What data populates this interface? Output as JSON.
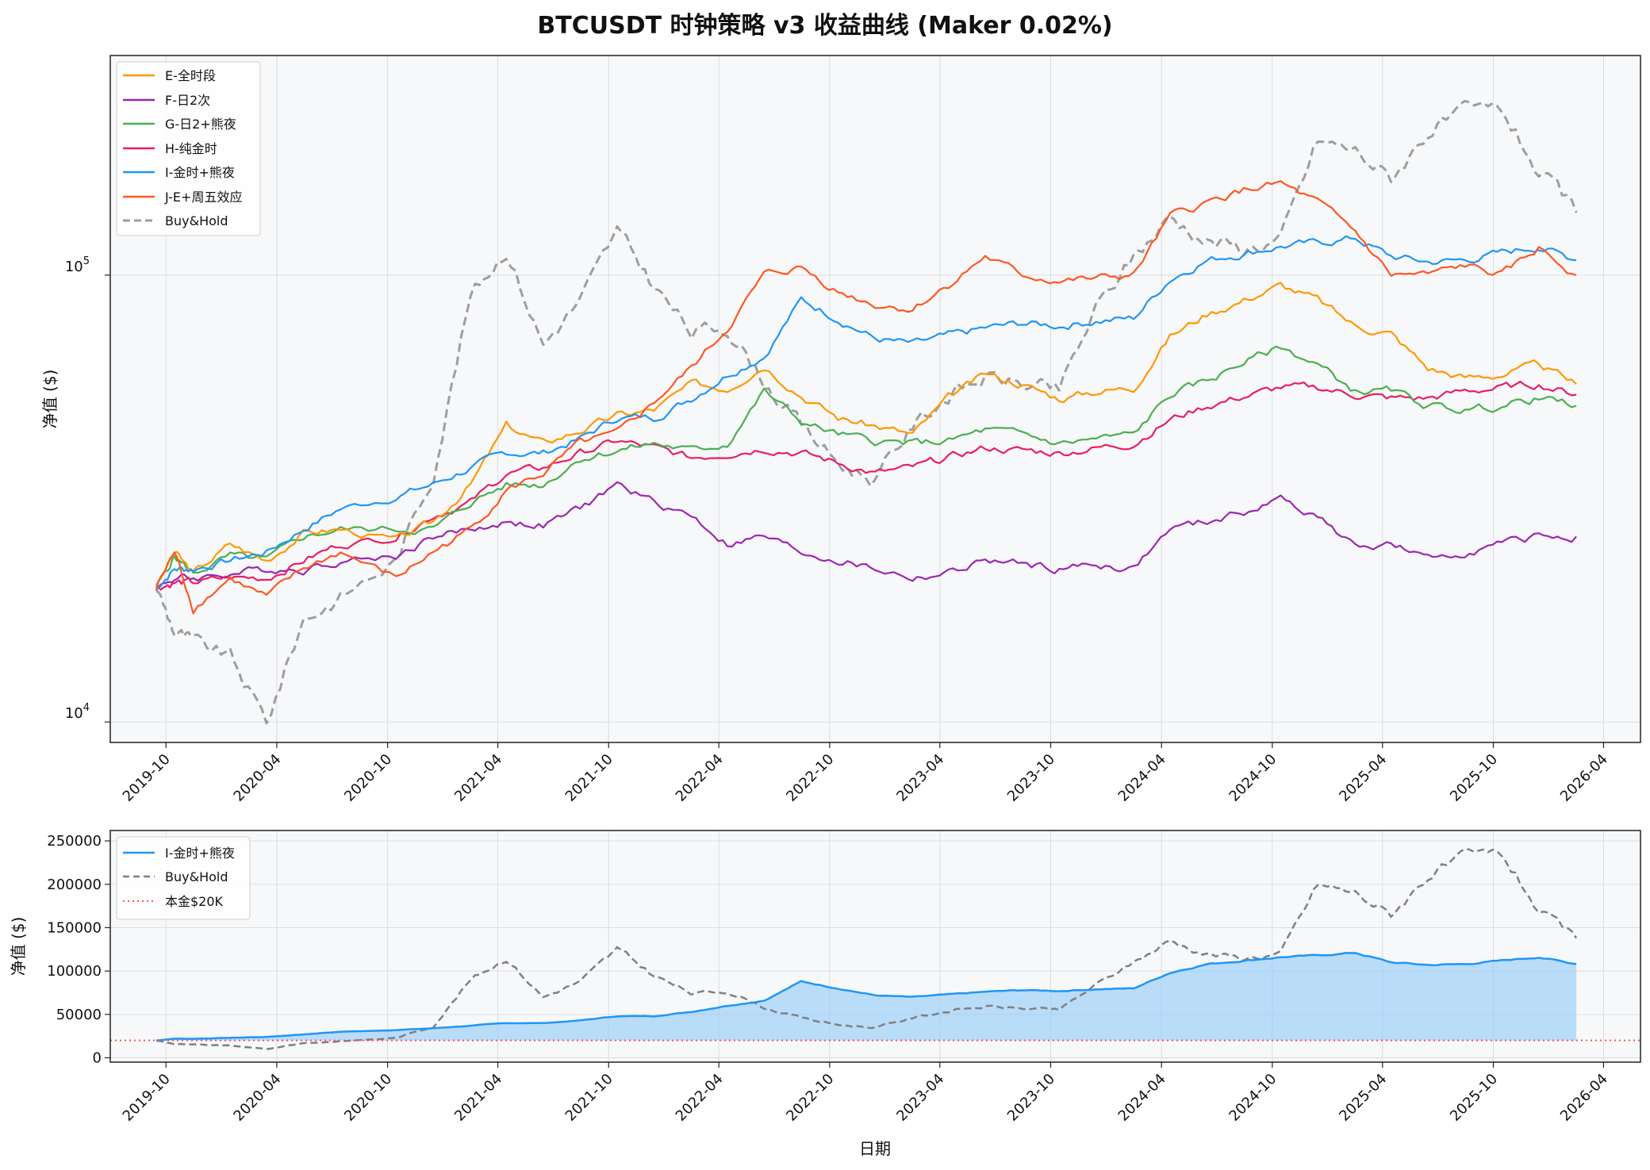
{
  "chart_data": [
    {
      "type": "line",
      "title": "BTCUSDT 时钟策略 v3 收益曲线 (Maker 0.02%)",
      "ylabel": "净值 ($)",
      "yscale": "log",
      "ylim": [
        9000,
        310000
      ],
      "xlim": [
        "2019-07-01",
        "2026-06-01"
      ],
      "grid": true,
      "legend_position": "top-left",
      "ytick_labels": [
        {
          "base": "10",
          "exp": "4",
          "value": 10000
        },
        {
          "base": "10",
          "exp": "5",
          "value": 100000
        }
      ],
      "xtick_labels": [
        "2019-10",
        "2020-04",
        "2020-10",
        "2021-04",
        "2021-10",
        "2022-04",
        "2022-10",
        "2023-04",
        "2023-10",
        "2024-04",
        "2024-10",
        "2025-04",
        "2025-10",
        "2026-04"
      ],
      "x": [
        "2019-09",
        "2019-10",
        "2019-11",
        "2020-01",
        "2020-03",
        "2020-05",
        "2020-07",
        "2020-10",
        "2020-12",
        "2021-02",
        "2021-04",
        "2021-06",
        "2021-08",
        "2021-10",
        "2021-12",
        "2022-02",
        "2022-04",
        "2022-06",
        "2022-08",
        "2022-10",
        "2022-12",
        "2023-02",
        "2023-04",
        "2023-06",
        "2023-08",
        "2023-10",
        "2023-12",
        "2024-02",
        "2024-04",
        "2024-06",
        "2024-08",
        "2024-10",
        "2024-12",
        "2025-02",
        "2025-04",
        "2025-06",
        "2025-08",
        "2025-10",
        "2025-12",
        "2026-02"
      ],
      "series": [
        {
          "name": "E-全时段",
          "color": "#ff9800",
          "dash": "solid",
          "values": [
            20000,
            24000,
            21500,
            25000,
            23000,
            26500,
            27000,
            25500,
            28000,
            34000,
            46000,
            42000,
            45000,
            48500,
            50000,
            57000,
            56000,
            63000,
            54000,
            48000,
            46000,
            44000,
            53000,
            60000,
            57000,
            53000,
            55000,
            56000,
            73000,
            82000,
            88000,
            95000,
            88000,
            77000,
            74000,
            62000,
            59000,
            60000,
            63000,
            57000
          ]
        },
        {
          "name": "F-日2次",
          "color": "#9c27b0",
          "dash": "solid",
          "values": [
            20000,
            21000,
            21000,
            21500,
            22000,
            22000,
            23000,
            23500,
            26000,
            27000,
            28000,
            27500,
            30000,
            34000,
            31000,
            29000,
            25000,
            26000,
            24000,
            23000,
            22000,
            21000,
            21500,
            23000,
            22500,
            22000,
            22500,
            22000,
            27000,
            28000,
            29500,
            31500,
            29000,
            24500,
            25000,
            23000,
            24000,
            25000,
            26000,
            26000
          ]
        },
        {
          "name": "G-日2+熊夜",
          "color": "#4caf50",
          "dash": "solid",
          "values": [
            20000,
            23500,
            21500,
            23500,
            23000,
            26000,
            27000,
            27000,
            27000,
            31000,
            34000,
            34000,
            39000,
            40500,
            42000,
            40500,
            42000,
            55000,
            47000,
            44000,
            42500,
            42000,
            42500,
            45000,
            44000,
            42000,
            43000,
            44000,
            54000,
            58000,
            64000,
            69000,
            63000,
            55000,
            55000,
            51000,
            50000,
            51000,
            53000,
            51000
          ]
        },
        {
          "name": "H-纯金时",
          "color": "#e91e63",
          "dash": "solid",
          "values": [
            20000,
            20500,
            20500,
            21000,
            21000,
            23000,
            25000,
            26000,
            29000,
            31000,
            36000,
            37000,
            40000,
            42500,
            41000,
            39000,
            40000,
            41000,
            40000,
            38000,
            36000,
            37000,
            39000,
            41000,
            40500,
            40000,
            41000,
            42000,
            47500,
            51000,
            53500,
            56000,
            56000,
            54000,
            53000,
            53000,
            55000,
            56000,
            57000,
            54000
          ]
        },
        {
          "name": "I-金时+熊夜",
          "color": "#2196f3",
          "dash": "solid",
          "values": [
            20000,
            22000,
            22000,
            23000,
            24000,
            27000,
            30000,
            32000,
            34000,
            37000,
            40000,
            40000,
            43000,
            48000,
            48000,
            53000,
            60000,
            66000,
            88000,
            80000,
            72000,
            70000,
            73000,
            76000,
            78000,
            77000,
            79000,
            80000,
            98000,
            108000,
            112000,
            116000,
            118000,
            121000,
            110000,
            107000,
            108000,
            112000,
            116000,
            108000
          ]
        },
        {
          "name": "J-E+周五效应",
          "color": "#ff5722",
          "dash": "solid",
          "values": [
            20000,
            24000,
            18000,
            21000,
            19000,
            22000,
            24000,
            21000,
            24000,
            27000,
            33000,
            36000,
            42000,
            44000,
            52000,
            62000,
            76000,
            100000,
            104000,
            92000,
            86000,
            84000,
            95000,
            110000,
            100000,
            97000,
            98000,
            100000,
            135000,
            145000,
            155000,
            160000,
            145000,
            125000,
            100000,
            100000,
            105000,
            100000,
            115000,
            100000
          ]
        },
        {
          "name": "Buy&Hold",
          "color": "#9e9e9e",
          "dash": "dashed",
          "values": [
            20000,
            16000,
            15000,
            14000,
            10000,
            17000,
            19000,
            23000,
            36000,
            90000,
            115000,
            70000,
            88000,
            125000,
            95000,
            74000,
            77000,
            58000,
            46000,
            38000,
            35000,
            46000,
            54000,
            59000,
            57000,
            55000,
            84000,
            110000,
            135000,
            120000,
            115000,
            120000,
            200000,
            190000,
            165000,
            210000,
            230000,
            235000,
            170000,
            138000
          ]
        }
      ]
    },
    {
      "type": "area",
      "ylabel": "净值 ($)",
      "xlabel": "日期",
      "ylim": [
        -5000,
        262000
      ],
      "xlim": [
        "2019-07-01",
        "2026-06-01"
      ],
      "grid": true,
      "legend_position": "top-left",
      "ytick_labels": [
        "0",
        "50000",
        "100000",
        "150000",
        "200000",
        "250000"
      ],
      "ytick_values": [
        0,
        50000,
        100000,
        150000,
        200000,
        250000
      ],
      "xtick_labels": [
        "2019-10",
        "2020-04",
        "2020-10",
        "2021-04",
        "2021-10",
        "2022-04",
        "2022-10",
        "2023-04",
        "2023-10",
        "2024-04",
        "2024-10",
        "2025-04",
        "2025-10",
        "2026-04"
      ],
      "x": [
        "2019-09",
        "2019-10",
        "2019-11",
        "2020-01",
        "2020-03",
        "2020-05",
        "2020-07",
        "2020-10",
        "2020-12",
        "2021-02",
        "2021-04",
        "2021-06",
        "2021-08",
        "2021-10",
        "2021-12",
        "2022-02",
        "2022-04",
        "2022-06",
        "2022-08",
        "2022-10",
        "2022-12",
        "2023-02",
        "2023-04",
        "2023-06",
        "2023-08",
        "2023-10",
        "2023-12",
        "2024-02",
        "2024-04",
        "2024-06",
        "2024-08",
        "2024-10",
        "2024-12",
        "2025-02",
        "2025-04",
        "2025-06",
        "2025-08",
        "2025-10",
        "2025-12",
        "2026-02"
      ],
      "series": [
        {
          "name": "I-金时+熊夜",
          "color": "#2196f3",
          "dash": "solid",
          "fill": "#90caf9",
          "values": [
            20000,
            22000,
            22000,
            23000,
            24000,
            27000,
            30000,
            32000,
            34000,
            37000,
            40000,
            40000,
            43000,
            48000,
            48000,
            53000,
            60000,
            66000,
            88000,
            80000,
            72000,
            70000,
            73000,
            76000,
            78000,
            77000,
            79000,
            80000,
            98000,
            108000,
            112000,
            116000,
            118000,
            121000,
            110000,
            107000,
            108000,
            112000,
            116000,
            108000
          ]
        },
        {
          "name": "Buy&Hold",
          "color": "#808080",
          "dash": "dashed",
          "values": [
            20000,
            16000,
            15000,
            14000,
            10000,
            17000,
            19000,
            23000,
            36000,
            90000,
            115000,
            70000,
            88000,
            125000,
            95000,
            74000,
            77000,
            58000,
            46000,
            38000,
            35000,
            46000,
            54000,
            59000,
            57000,
            55000,
            84000,
            110000,
            135000,
            120000,
            115000,
            120000,
            200000,
            190000,
            165000,
            210000,
            230000,
            235000,
            170000,
            138000
          ]
        }
      ],
      "reference_line": {
        "name": "本金$20K",
        "value": 20000,
        "color": "#ff5252",
        "dash": "dotted"
      }
    }
  ]
}
